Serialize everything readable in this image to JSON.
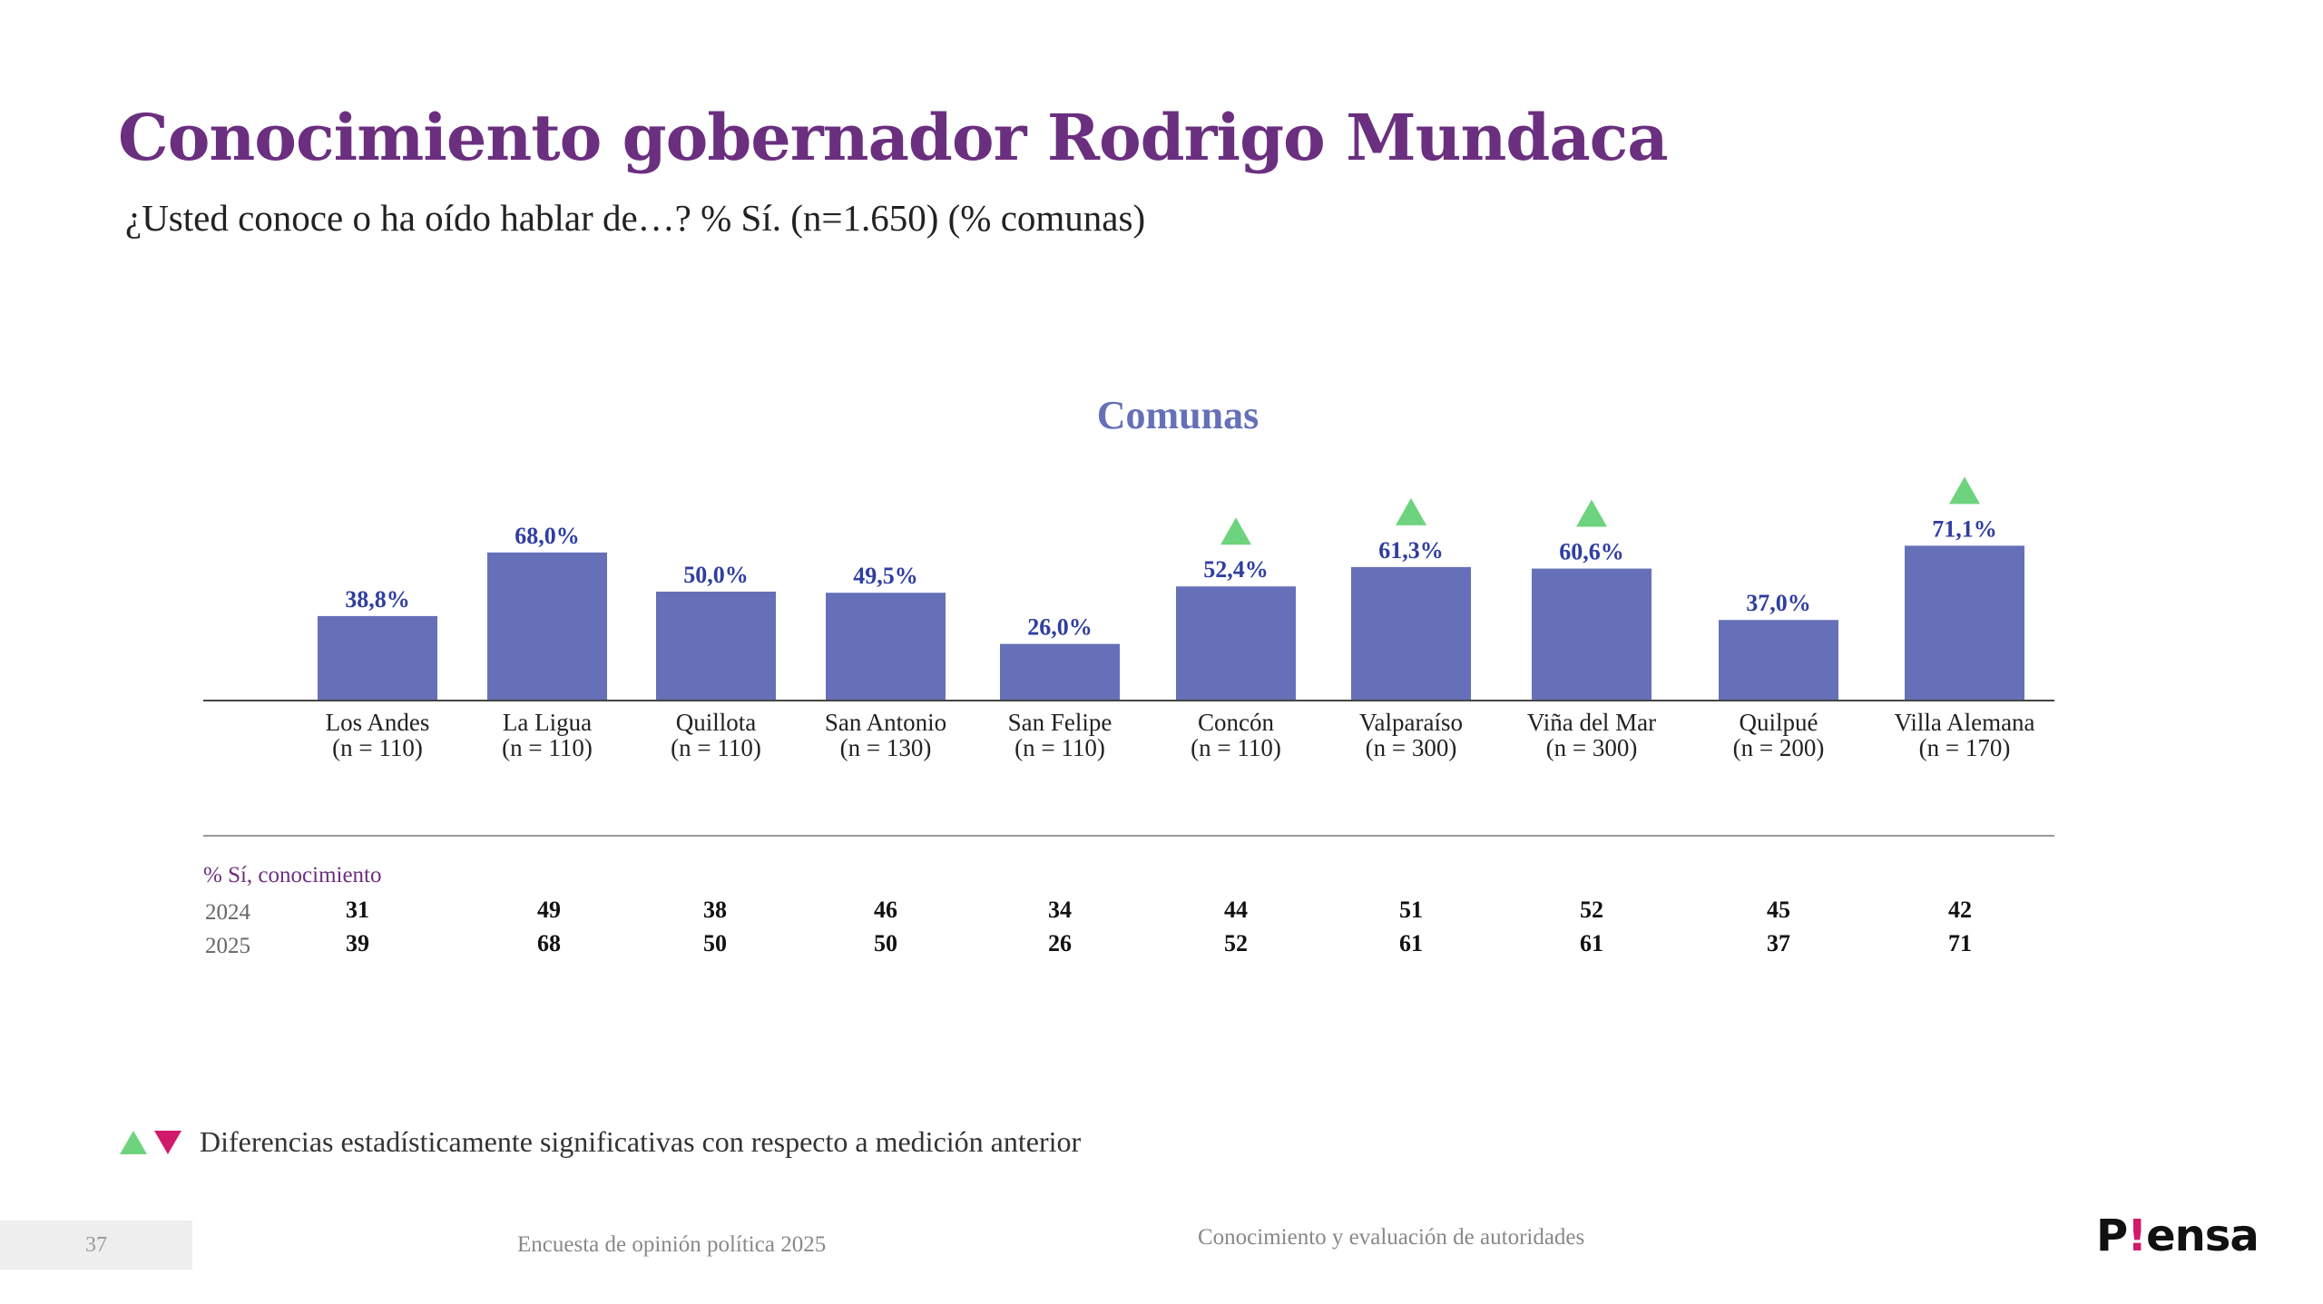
{
  "header": {
    "title": "Conocimiento gobernador Rodrigo Mundaca",
    "subtitle": "¿Usted conoce o ha oído hablar de…? % Sí. (n=1.650) (% comunas)"
  },
  "colors": {
    "title": "#6b2f7f",
    "bar": "#6670b8",
    "value_label": "#2f3ea0",
    "up_marker": "#6ed37e",
    "down_marker": "#d11a6c"
  },
  "chart_data": {
    "type": "bar",
    "title": "Comunas",
    "categories": [
      "Los Andes",
      "La Ligua",
      "Quillota",
      "San Antonio",
      "San Felipe",
      "Concón",
      "Valparaíso",
      "Viña del Mar",
      "Quilpué",
      "Villa Alemana"
    ],
    "sample_sizes": [
      "(n = 110)",
      "(n = 110)",
      "(n = 110)",
      "(n = 130)",
      "(n = 110)",
      "(n = 110)",
      "(n = 300)",
      "(n = 300)",
      "(n = 200)",
      "(n = 170)"
    ],
    "values": [
      38.8,
      68.0,
      50.0,
      49.5,
      26.0,
      52.4,
      61.3,
      60.6,
      37.0,
      71.1
    ],
    "value_labels": [
      "38,8%",
      "68,0%",
      "50,0%",
      "49,5%",
      "26,0%",
      "52,4%",
      "61,3%",
      "60,6%",
      "37,0%",
      "71,1%"
    ],
    "significant_up": [
      false,
      false,
      false,
      false,
      false,
      true,
      true,
      true,
      false,
      true
    ],
    "ylim": [
      0,
      100
    ],
    "xlabel": "",
    "ylabel": ""
  },
  "comparison_table": {
    "header": "% Sí, conocimiento",
    "rows": [
      {
        "year": "2024",
        "values": [
          "31",
          "49",
          "38",
          "46",
          "34",
          "44",
          "51",
          "52",
          "45",
          "42"
        ]
      },
      {
        "year": "2025",
        "values": [
          "39",
          "68",
          "50",
          "50",
          "26",
          "52",
          "61",
          "61",
          "37",
          "71"
        ]
      }
    ]
  },
  "legend": {
    "up_icon": "triangle-up-icon",
    "down_icon": "triangle-down-icon",
    "text": "Diferencias estadísticamente significativas con respecto a medición anterior"
  },
  "footer": {
    "page_number": "37",
    "survey": "Encuesta de opinión política 2025",
    "section": "Conocimiento y evaluación de autoridades",
    "logo_prefix": "P",
    "logo_mark": "!",
    "logo_suffix": "ensa"
  }
}
